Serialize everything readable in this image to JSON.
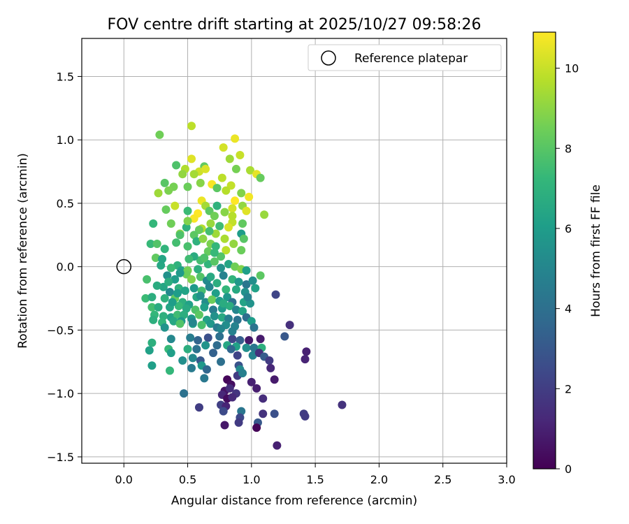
{
  "chart_data": {
    "type": "scatter",
    "title": "FOV centre drift starting at 2025/10/27 09:58:26",
    "xlabel": "Angular distance from reference (arcmin)",
    "ylabel": "Rotation from reference (arcmin)",
    "xlim": [
      -0.33,
      3.0
    ],
    "ylim": [
      -1.55,
      1.8
    ],
    "xticks": [
      0.0,
      0.5,
      1.0,
      1.5,
      2.0,
      2.5,
      3.0
    ],
    "xtick_labels": [
      "0.0",
      "0.5",
      "1.0",
      "1.5",
      "2.0",
      "2.5",
      "3.0"
    ],
    "yticks": [
      -1.5,
      -1.0,
      -0.5,
      0.0,
      0.5,
      1.0,
      1.5
    ],
    "ytick_labels": [
      "−1.5",
      "−1.0",
      "−0.5",
      "0.0",
      "0.5",
      "1.0",
      "1.5"
    ],
    "grid": true,
    "legend": {
      "location": "top-right",
      "entries": [
        "Reference platepar"
      ]
    },
    "reference_point": {
      "x": 0.0,
      "y": 0.0
    },
    "colorbar": {
      "label": "Hours from first FF file",
      "min": 0,
      "max": 10.9,
      "colormap": "viridis",
      "ticks": [
        0,
        2,
        4,
        6,
        8,
        10
      ],
      "tick_labels": [
        "0",
        "2",
        "4",
        "6",
        "8",
        "10"
      ]
    },
    "colormap_stops": [
      "#440154",
      "#482878",
      "#3e4989",
      "#31688e",
      "#26828e",
      "#1f9e89",
      "#35b779",
      "#6ece58",
      "#b5de2b",
      "#fde725"
    ],
    "points": [
      [
        0.28,
        1.04,
        8.5
      ],
      [
        0.53,
        1.11,
        9.8
      ],
      [
        0.87,
        1.01,
        10.6
      ],
      [
        0.78,
        0.94,
        10.2
      ],
      [
        0.91,
        0.88,
        10.0
      ],
      [
        0.53,
        0.85,
        10.4
      ],
      [
        0.63,
        0.79,
        8.2
      ],
      [
        0.59,
        0.75,
        10.1
      ],
      [
        0.48,
        0.77,
        9.6
      ],
      [
        0.64,
        0.77,
        10.3
      ],
      [
        0.41,
        0.8,
        7.8
      ],
      [
        0.83,
        0.85,
        9.3
      ],
      [
        0.99,
        0.76,
        9.5
      ],
      [
        1.04,
        0.73,
        10.5
      ],
      [
        0.77,
        0.7,
        9.8
      ],
      [
        0.55,
        0.73,
        9.4
      ],
      [
        0.88,
        0.77,
        8.6
      ],
      [
        1.07,
        0.7,
        8.3
      ],
      [
        0.32,
        0.66,
        8.0
      ],
      [
        0.39,
        0.63,
        8.6
      ],
      [
        0.46,
        0.73,
        9.1
      ],
      [
        0.69,
        0.65,
        10.8
      ],
      [
        0.84,
        0.64,
        9.9
      ],
      [
        0.6,
        0.66,
        8.9
      ],
      [
        0.27,
        0.58,
        9.3
      ],
      [
        0.35,
        0.6,
        8.7
      ],
      [
        0.5,
        0.63,
        8.4
      ],
      [
        0.73,
        0.62,
        8.1
      ],
      [
        0.8,
        0.6,
        9.7
      ],
      [
        0.92,
        0.58,
        8.8
      ],
      [
        0.98,
        0.55,
        10.7
      ],
      [
        0.87,
        0.52,
        10.9
      ],
      [
        0.61,
        0.52,
        10.6
      ],
      [
        0.64,
        0.48,
        9.4
      ],
      [
        0.4,
        0.48,
        10.0
      ],
      [
        0.33,
        0.45,
        8.3
      ],
      [
        0.5,
        0.44,
        7.4
      ],
      [
        0.58,
        0.42,
        10.9
      ],
      [
        0.73,
        0.48,
        7.0
      ],
      [
        0.79,
        0.43,
        8.9
      ],
      [
        0.93,
        0.48,
        9.1
      ],
      [
        0.96,
        0.44,
        10.4
      ],
      [
        1.1,
        0.41,
        9.2
      ],
      [
        0.85,
        0.46,
        10.2
      ],
      [
        0.67,
        0.44,
        8.1
      ],
      [
        0.55,
        0.38,
        10.8
      ],
      [
        0.61,
        0.3,
        9.6
      ],
      [
        0.68,
        0.34,
        9.2
      ],
      [
        0.75,
        0.32,
        7.5
      ],
      [
        0.85,
        0.35,
        9.9
      ],
      [
        0.23,
        0.34,
        7.2
      ],
      [
        0.37,
        0.34,
        8.5
      ],
      [
        0.49,
        0.31,
        7.0
      ],
      [
        0.44,
        0.26,
        8.9
      ],
      [
        0.59,
        0.29,
        8.3
      ],
      [
        0.82,
        0.31,
        10.3
      ],
      [
        0.92,
        0.26,
        6.0
      ],
      [
        0.93,
        0.34,
        8.2
      ],
      [
        0.55,
        0.25,
        8.1
      ],
      [
        0.72,
        0.26,
        9.3
      ],
      [
        0.41,
        0.19,
        7.6
      ],
      [
        0.32,
        0.14,
        7.1
      ],
      [
        0.21,
        0.18,
        7.3
      ],
      [
        0.26,
        0.18,
        7.9
      ],
      [
        0.5,
        0.16,
        7.7
      ],
      [
        0.57,
        0.2,
        7.0
      ],
      [
        0.62,
        0.22,
        9.0
      ],
      [
        0.68,
        0.18,
        8.7
      ],
      [
        0.72,
        0.16,
        7.2
      ],
      [
        0.79,
        0.22,
        9.5
      ],
      [
        0.86,
        0.18,
        9.1
      ],
      [
        0.92,
        0.13,
        8.4
      ],
      [
        0.8,
        0.13,
        9.8
      ],
      [
        0.76,
        0.08,
        7.9
      ],
      [
        0.66,
        0.12,
        8.3
      ],
      [
        0.6,
        0.05,
        7.6
      ],
      [
        0.55,
        0.08,
        6.7
      ],
      [
        0.25,
        0.07,
        8.2
      ],
      [
        0.42,
        0.01,
        7.0
      ],
      [
        0.29,
        0.01,
        6.5
      ],
      [
        0.37,
        -0.01,
        7.4
      ],
      [
        0.45,
        -0.03,
        6.2
      ],
      [
        0.5,
        -0.03,
        8.6
      ],
      [
        0.58,
        -0.02,
        6.9
      ],
      [
        0.66,
        0.02,
        7.1
      ],
      [
        0.71,
        0.04,
        8.0
      ],
      [
        0.76,
        -0.01,
        5.6
      ],
      [
        0.82,
        0.02,
        6.4
      ],
      [
        0.87,
        0.0,
        8.5
      ],
      [
        0.92,
        -0.02,
        8.8
      ],
      [
        0.96,
        -0.03,
        6.1
      ],
      [
        1.07,
        -0.07,
        8.1
      ],
      [
        0.18,
        -0.1,
        7.7
      ],
      [
        0.34,
        -0.07,
        5.5
      ],
      [
        0.4,
        -0.1,
        6.0
      ],
      [
        0.49,
        -0.06,
        8.4
      ],
      [
        0.53,
        -0.1,
        8.8
      ],
      [
        0.6,
        -0.08,
        7.9
      ],
      [
        0.65,
        -0.11,
        5.2
      ],
      [
        0.73,
        -0.13,
        6.8
      ],
      [
        0.78,
        -0.07,
        4.9
      ],
      [
        0.85,
        -0.1,
        7.1
      ],
      [
        0.9,
        -0.12,
        5.8
      ],
      [
        0.96,
        -0.14,
        4.3
      ],
      [
        1.01,
        -0.11,
        5.4
      ],
      [
        0.31,
        -0.16,
        6.4
      ],
      [
        0.36,
        -0.2,
        5.2
      ],
      [
        0.43,
        -0.17,
        7.0
      ],
      [
        0.48,
        -0.19,
        6.3
      ],
      [
        0.55,
        -0.17,
        5.9
      ],
      [
        0.61,
        -0.19,
        7.6
      ],
      [
        0.67,
        -0.16,
        5.0
      ],
      [
        0.72,
        -0.21,
        6.1
      ],
      [
        0.8,
        -0.18,
        7.2
      ],
      [
        0.88,
        -0.18,
        6.6
      ],
      [
        0.95,
        -0.2,
        5.5
      ],
      [
        1.19,
        -0.22,
        2.3
      ],
      [
        0.17,
        -0.25,
        7.4
      ],
      [
        0.22,
        -0.24,
        6.8
      ],
      [
        0.32,
        -0.25,
        7.0
      ],
      [
        0.4,
        -0.25,
        8.2
      ],
      [
        0.46,
        -0.28,
        6.9
      ],
      [
        0.51,
        -0.3,
        6.2
      ],
      [
        0.57,
        -0.24,
        6.5
      ],
      [
        0.64,
        -0.28,
        5.3
      ],
      [
        0.69,
        -0.26,
        8.4
      ],
      [
        0.75,
        -0.27,
        6.0
      ],
      [
        0.81,
        -0.24,
        5.8
      ],
      [
        0.85,
        -0.28,
        4.1
      ],
      [
        0.94,
        -0.28,
        6.3
      ],
      [
        0.99,
        -0.29,
        5.6
      ],
      [
        0.22,
        -0.32,
        7.6
      ],
      [
        0.27,
        -0.32,
        6.7
      ],
      [
        0.36,
        -0.32,
        6.4
      ],
      [
        0.43,
        -0.31,
        7.3
      ],
      [
        0.49,
        -0.33,
        6.6
      ],
      [
        0.56,
        -0.34,
        7.8
      ],
      [
        0.63,
        -0.32,
        6.1
      ],
      [
        0.7,
        -0.34,
        4.6
      ],
      [
        0.77,
        -0.33,
        5.9
      ],
      [
        0.83,
        -0.31,
        6.8
      ],
      [
        0.88,
        -0.34,
        5.0
      ],
      [
        0.93,
        -0.35,
        6.3
      ],
      [
        0.24,
        -0.38,
        7.2
      ],
      [
        0.31,
        -0.39,
        6.9
      ],
      [
        0.37,
        -0.4,
        6.3
      ],
      [
        0.42,
        -0.38,
        7.5
      ],
      [
        0.47,
        -0.38,
        6.8
      ],
      [
        0.53,
        -0.41,
        5.7
      ],
      [
        0.59,
        -0.38,
        8.1
      ],
      [
        0.65,
        -0.42,
        6.2
      ],
      [
        0.71,
        -0.39,
        5.5
      ],
      [
        0.77,
        -0.4,
        6.6
      ],
      [
        0.82,
        -0.41,
        4.7
      ],
      [
        0.89,
        -0.42,
        4.2
      ],
      [
        0.96,
        -0.4,
        3.9
      ],
      [
        1.0,
        -0.43,
        6.0
      ],
      [
        1.3,
        -0.46,
        1.5
      ],
      [
        0.23,
        -0.42,
        6.9
      ],
      [
        0.3,
        -0.44,
        7.1
      ],
      [
        0.39,
        -0.43,
        6.5
      ],
      [
        0.45,
        -0.43,
        5.9
      ],
      [
        0.54,
        -0.45,
        6.1
      ],
      [
        0.61,
        -0.46,
        7.7
      ],
      [
        0.68,
        -0.45,
        5.8
      ],
      [
        0.73,
        -0.48,
        4.5
      ],
      [
        0.8,
        -0.46,
        5.3
      ],
      [
        0.87,
        -0.47,
        4.9
      ],
      [
        1.02,
        -0.48,
        4.2
      ],
      [
        0.32,
        -0.48,
        5.6
      ],
      [
        0.76,
        -0.49,
        5.0
      ],
      [
        1.26,
        -0.55,
        3.0
      ],
      [
        0.37,
        -0.57,
        5.1
      ],
      [
        0.52,
        -0.56,
        4.6
      ],
      [
        0.58,
        -0.58,
        3.5
      ],
      [
        0.66,
        -0.56,
        2.7
      ],
      [
        0.85,
        -0.57,
        2.3
      ],
      [
        0.91,
        -0.58,
        3.3
      ],
      [
        0.98,
        -0.58,
        0.7
      ],
      [
        1.07,
        -0.57,
        0.8
      ],
      [
        0.22,
        -0.6,
        6.9
      ],
      [
        0.35,
        -0.65,
        7.3
      ],
      [
        0.5,
        -0.65,
        6.8
      ],
      [
        0.64,
        -0.62,
        5.6
      ],
      [
        0.73,
        -0.62,
        3.8
      ],
      [
        0.81,
        -0.62,
        6.5
      ],
      [
        0.88,
        -0.63,
        6.2
      ],
      [
        0.96,
        -0.64,
        5.4
      ],
      [
        1.02,
        -0.64,
        4.3
      ],
      [
        1.08,
        -0.64,
        6.9
      ],
      [
        0.2,
        -0.66,
        6.2
      ],
      [
        0.57,
        -0.65,
        4.1
      ],
      [
        0.84,
        -0.65,
        3.6
      ],
      [
        1.43,
        -0.67,
        1.0
      ],
      [
        0.37,
        -0.68,
        6.1
      ],
      [
        0.7,
        -0.68,
        3.4
      ],
      [
        0.89,
        -0.7,
        2.2
      ],
      [
        1.01,
        -0.7,
        4.8
      ],
      [
        1.06,
        -0.68,
        1.5
      ],
      [
        1.1,
        -0.71,
        3.2
      ],
      [
        0.46,
        -0.74,
        5.4
      ],
      [
        0.54,
        -0.72,
        5.1
      ],
      [
        0.6,
        -0.74,
        3.0
      ],
      [
        0.76,
        -0.75,
        4.0
      ],
      [
        1.14,
        -0.74,
        1.9
      ],
      [
        1.42,
        -0.73,
        1.1
      ],
      [
        0.22,
        -0.78,
        6.1
      ],
      [
        0.53,
        -0.8,
        4.5
      ],
      [
        0.61,
        -0.78,
        5.8
      ],
      [
        0.9,
        -0.78,
        2.8
      ],
      [
        0.36,
        -0.82,
        7.2
      ],
      [
        0.65,
        -0.81,
        3.6
      ],
      [
        0.91,
        -0.81,
        5.2
      ],
      [
        1.15,
        -0.8,
        1.2
      ],
      [
        0.63,
        -0.88,
        4.4
      ],
      [
        0.81,
        -0.89,
        0.2
      ],
      [
        0.89,
        -0.86,
        1.9
      ],
      [
        0.93,
        -0.84,
        4.7
      ],
      [
        0.84,
        -0.93,
        0.4
      ],
      [
        1.0,
        -0.91,
        1.0
      ],
      [
        1.18,
        -0.89,
        0.8
      ],
      [
        0.79,
        -0.98,
        0.6
      ],
      [
        0.83,
        -0.96,
        1.4
      ],
      [
        0.88,
        -1.0,
        1.7
      ],
      [
        1.04,
        -0.96,
        0.9
      ],
      [
        0.47,
        -1.0,
        4.1
      ],
      [
        0.77,
        -1.01,
        1.2
      ],
      [
        0.81,
        -1.04,
        0.3
      ],
      [
        0.85,
        -1.03,
        1.3
      ],
      [
        1.09,
        -1.04,
        1.4
      ],
      [
        0.59,
        -1.11,
        2.0
      ],
      [
        0.76,
        -1.09,
        2.1
      ],
      [
        0.8,
        -1.1,
        1.1
      ],
      [
        0.92,
        -1.14,
        4.3
      ],
      [
        1.71,
        -1.09,
        1.6
      ],
      [
        0.78,
        -1.14,
        2.5
      ],
      [
        1.09,
        -1.16,
        1.6
      ],
      [
        1.18,
        -1.16,
        2.7
      ],
      [
        0.91,
        -1.19,
        2.4
      ],
      [
        1.41,
        -1.16,
        2.0
      ],
      [
        1.42,
        -1.18,
        1.9
      ],
      [
        0.79,
        -1.25,
        0.7
      ],
      [
        0.9,
        -1.23,
        1.9
      ],
      [
        1.05,
        -1.23,
        3.0
      ],
      [
        1.04,
        -1.27,
        0.1
      ],
      [
        1.2,
        -1.41,
        1.0
      ],
      [
        0.44,
        0.25,
        7.8
      ],
      [
        0.5,
        0.36,
        8.8
      ],
      [
        0.71,
        0.4,
        8.5
      ],
      [
        0.85,
        0.4,
        9.7
      ],
      [
        0.3,
        0.06,
        6.4
      ],
      [
        0.63,
        0.07,
        7.8
      ],
      [
        0.54,
        -0.44,
        5.0
      ],
      [
        0.44,
        -0.45,
        7.9
      ],
      [
        0.75,
        -0.55,
        4.0
      ],
      [
        0.42,
        -0.21,
        6.0
      ],
      [
        0.26,
        -0.15,
        6.7
      ],
      [
        0.38,
        -0.28,
        6.0
      ],
      [
        0.6,
        -0.23,
        5.5
      ],
      [
        0.68,
        -0.08,
        6.6
      ],
      [
        0.97,
        -0.24,
        4.9
      ],
      [
        1.03,
        -0.17,
        6.2
      ],
      [
        0.44,
        -0.05,
        5.9
      ],
      [
        0.51,
        0.06,
        7.5
      ],
      [
        0.71,
        0.11,
        7.3
      ],
      [
        0.94,
        0.22,
        8.0
      ],
      [
        0.67,
        0.28,
        7.6
      ],
      [
        0.35,
        -0.12,
        6.8
      ],
      [
        0.78,
        -0.29,
        6.7
      ],
      [
        0.85,
        -0.51,
        4.8
      ]
    ]
  }
}
